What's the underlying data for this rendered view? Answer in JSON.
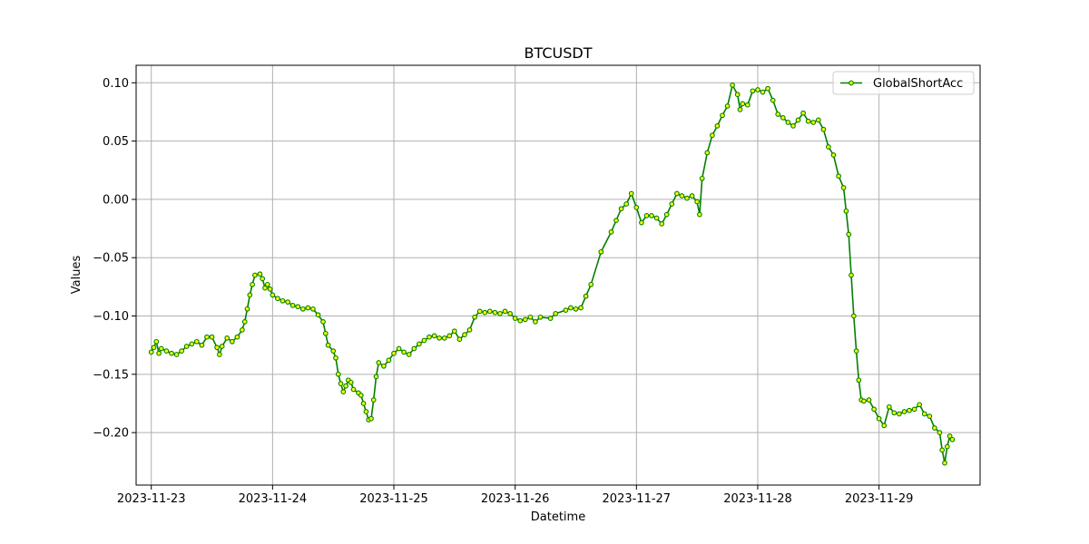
{
  "chart_data": {
    "type": "line",
    "title": "BTCUSDT",
    "xlabel": "Datetime",
    "ylabel": "Values",
    "grid": true,
    "legend_position": "top-right",
    "xlim": [
      "2023-11-22 21:00",
      "2023-11-29 20:00"
    ],
    "ylim": [
      -0.245,
      0.115
    ],
    "x_ticks": [
      "2023-11-23",
      "2023-11-24",
      "2023-11-25",
      "2023-11-26",
      "2023-11-27",
      "2023-11-28",
      "2023-11-29"
    ],
    "y_ticks": [
      -0.2,
      -0.15,
      -0.1,
      -0.05,
      0.0,
      0.05,
      0.1
    ],
    "y_tick_labels": [
      "−0.20",
      "−0.15",
      "−0.10",
      "−0.05",
      "0.00",
      "0.05",
      "0.10"
    ],
    "colors": {
      "line": "#008000",
      "marker_face": "#ffff00",
      "marker_edge": "#008000",
      "grid": "#b0b0b0"
    },
    "series": [
      {
        "name": "GlobalShortAcc",
        "marker": "circle",
        "points": [
          [
            "2023-11-23 00:00",
            -0.131
          ],
          [
            "2023-11-23 00:30",
            -0.127
          ],
          [
            "2023-11-23 01:00",
            -0.122
          ],
          [
            "2023-11-23 01:30",
            -0.132
          ],
          [
            "2023-11-23 02:00",
            -0.128
          ],
          [
            "2023-11-23 03:00",
            -0.13
          ],
          [
            "2023-11-23 04:00",
            -0.132
          ],
          [
            "2023-11-23 05:00",
            -0.133
          ],
          [
            "2023-11-23 06:00",
            -0.13
          ],
          [
            "2023-11-23 07:00",
            -0.126
          ],
          [
            "2023-11-23 08:00",
            -0.124
          ],
          [
            "2023-11-23 09:00",
            -0.122
          ],
          [
            "2023-11-23 10:00",
            -0.125
          ],
          [
            "2023-11-23 11:00",
            -0.118
          ],
          [
            "2023-11-23 12:00",
            -0.118
          ],
          [
            "2023-11-23 13:00",
            -0.127
          ],
          [
            "2023-11-23 13:30",
            -0.133
          ],
          [
            "2023-11-23 14:00",
            -0.126
          ],
          [
            "2023-11-23 15:00",
            -0.119
          ],
          [
            "2023-11-23 16:00",
            -0.122
          ],
          [
            "2023-11-23 17:00",
            -0.118
          ],
          [
            "2023-11-23 18:00",
            -0.112
          ],
          [
            "2023-11-23 18:30",
            -0.105
          ],
          [
            "2023-11-23 19:00",
            -0.094
          ],
          [
            "2023-11-23 19:30",
            -0.082
          ],
          [
            "2023-11-23 20:00",
            -0.073
          ],
          [
            "2023-11-23 20:30",
            -0.065
          ],
          [
            "2023-11-23 21:30",
            -0.064
          ],
          [
            "2023-11-23 22:00",
            -0.068
          ],
          [
            "2023-11-23 22:30",
            -0.076
          ],
          [
            "2023-11-23 23:00",
            -0.073
          ],
          [
            "2023-11-23 23:30",
            -0.077
          ],
          [
            "2023-11-24 00:00",
            -0.082
          ],
          [
            "2023-11-24 01:00",
            -0.085
          ],
          [
            "2023-11-24 02:00",
            -0.087
          ],
          [
            "2023-11-24 03:00",
            -0.088
          ],
          [
            "2023-11-24 04:00",
            -0.091
          ],
          [
            "2023-11-24 05:00",
            -0.092
          ],
          [
            "2023-11-24 06:00",
            -0.094
          ],
          [
            "2023-11-24 07:00",
            -0.093
          ],
          [
            "2023-11-24 08:00",
            -0.094
          ],
          [
            "2023-11-24 09:00",
            -0.099
          ],
          [
            "2023-11-24 10:00",
            -0.105
          ],
          [
            "2023-11-24 10:30",
            -0.115
          ],
          [
            "2023-11-24 11:00",
            -0.125
          ],
          [
            "2023-11-24 12:00",
            -0.13
          ],
          [
            "2023-11-24 12:30",
            -0.136
          ],
          [
            "2023-11-24 13:00",
            -0.15
          ],
          [
            "2023-11-24 13:30",
            -0.158
          ],
          [
            "2023-11-24 14:00",
            -0.165
          ],
          [
            "2023-11-24 14:30",
            -0.16
          ],
          [
            "2023-11-24 15:00",
            -0.155
          ],
          [
            "2023-11-24 15:30",
            -0.157
          ],
          [
            "2023-11-24 16:00",
            -0.163
          ],
          [
            "2023-11-24 17:00",
            -0.166
          ],
          [
            "2023-11-24 17:30",
            -0.168
          ],
          [
            "2023-11-24 18:00",
            -0.175
          ],
          [
            "2023-11-24 18:30",
            -0.182
          ],
          [
            "2023-11-24 19:00",
            -0.189
          ],
          [
            "2023-11-24 19:30",
            -0.188
          ],
          [
            "2023-11-24 20:00",
            -0.172
          ],
          [
            "2023-11-24 20:30",
            -0.152
          ],
          [
            "2023-11-24 21:00",
            -0.14
          ],
          [
            "2023-11-24 22:00",
            -0.143
          ],
          [
            "2023-11-24 23:00",
            -0.138
          ],
          [
            "2023-11-25 00:00",
            -0.132
          ],
          [
            "2023-11-25 01:00",
            -0.128
          ],
          [
            "2023-11-25 02:00",
            -0.131
          ],
          [
            "2023-11-25 03:00",
            -0.133
          ],
          [
            "2023-11-25 04:00",
            -0.128
          ],
          [
            "2023-11-25 05:00",
            -0.124
          ],
          [
            "2023-11-25 06:00",
            -0.121
          ],
          [
            "2023-11-25 07:00",
            -0.118
          ],
          [
            "2023-11-25 08:00",
            -0.117
          ],
          [
            "2023-11-25 09:00",
            -0.119
          ],
          [
            "2023-11-25 10:00",
            -0.119
          ],
          [
            "2023-11-25 11:00",
            -0.117
          ],
          [
            "2023-11-25 12:00",
            -0.113
          ],
          [
            "2023-11-25 13:00",
            -0.12
          ],
          [
            "2023-11-25 14:00",
            -0.116
          ],
          [
            "2023-11-25 15:00",
            -0.112
          ],
          [
            "2023-11-25 16:00",
            -0.101
          ],
          [
            "2023-11-25 17:00",
            -0.096
          ],
          [
            "2023-11-25 18:00",
            -0.097
          ],
          [
            "2023-11-25 19:00",
            -0.096
          ],
          [
            "2023-11-25 20:00",
            -0.097
          ],
          [
            "2023-11-25 21:00",
            -0.098
          ],
          [
            "2023-11-25 22:00",
            -0.096
          ],
          [
            "2023-11-25 23:00",
            -0.098
          ],
          [
            "2023-11-26 00:00",
            -0.102
          ],
          [
            "2023-11-26 01:00",
            -0.104
          ],
          [
            "2023-11-26 02:00",
            -0.103
          ],
          [
            "2023-11-26 03:00",
            -0.101
          ],
          [
            "2023-11-26 04:00",
            -0.105
          ],
          [
            "2023-11-26 05:00",
            -0.101
          ],
          [
            "2023-11-26 07:00",
            -0.102
          ],
          [
            "2023-11-26 08:00",
            -0.098
          ],
          [
            "2023-11-26 10:00",
            -0.095
          ],
          [
            "2023-11-26 11:00",
            -0.093
          ],
          [
            "2023-11-26 12:00",
            -0.094
          ],
          [
            "2023-11-26 13:00",
            -0.093
          ],
          [
            "2023-11-26 14:00",
            -0.083
          ],
          [
            "2023-11-26 15:00",
            -0.073
          ],
          [
            "2023-11-26 17:00",
            -0.045
          ],
          [
            "2023-11-26 19:00",
            -0.028
          ],
          [
            "2023-11-26 20:00",
            -0.018
          ],
          [
            "2023-11-26 21:00",
            -0.008
          ],
          [
            "2023-11-26 22:00",
            -0.004
          ],
          [
            "2023-11-26 23:00",
            0.005
          ],
          [
            "2023-11-27 00:00",
            -0.007
          ],
          [
            "2023-11-27 01:00",
            -0.02
          ],
          [
            "2023-11-27 02:00",
            -0.014
          ],
          [
            "2023-11-27 03:00",
            -0.014
          ],
          [
            "2023-11-27 04:00",
            -0.016
          ],
          [
            "2023-11-27 05:00",
            -0.021
          ],
          [
            "2023-11-27 06:00",
            -0.013
          ],
          [
            "2023-11-27 07:00",
            -0.004
          ],
          [
            "2023-11-27 08:00",
            0.005
          ],
          [
            "2023-11-27 09:00",
            0.003
          ],
          [
            "2023-11-27 10:00",
            0.001
          ],
          [
            "2023-11-27 11:00",
            0.003
          ],
          [
            "2023-11-27 12:00",
            -0.002
          ],
          [
            "2023-11-27 12:30",
            -0.013
          ],
          [
            "2023-11-27 13:00",
            0.018
          ],
          [
            "2023-11-27 14:00",
            0.04
          ],
          [
            "2023-11-27 15:00",
            0.055
          ],
          [
            "2023-11-27 16:00",
            0.063
          ],
          [
            "2023-11-27 17:00",
            0.072
          ],
          [
            "2023-11-27 18:00",
            0.08
          ],
          [
            "2023-11-27 19:00",
            0.098
          ],
          [
            "2023-11-27 20:00",
            0.09
          ],
          [
            "2023-11-27 20:30",
            0.077
          ],
          [
            "2023-11-27 21:00",
            0.082
          ],
          [
            "2023-11-27 22:00",
            0.081
          ],
          [
            "2023-11-27 23:00",
            0.093
          ],
          [
            "2023-11-28 00:00",
            0.094
          ],
          [
            "2023-11-28 01:00",
            0.092
          ],
          [
            "2023-11-28 02:00",
            0.095
          ],
          [
            "2023-11-28 03:00",
            0.085
          ],
          [
            "2023-11-28 04:00",
            0.073
          ],
          [
            "2023-11-28 05:00",
            0.07
          ],
          [
            "2023-11-28 06:00",
            0.066
          ],
          [
            "2023-11-28 07:00",
            0.063
          ],
          [
            "2023-11-28 08:00",
            0.068
          ],
          [
            "2023-11-28 09:00",
            0.074
          ],
          [
            "2023-11-28 10:00",
            0.067
          ],
          [
            "2023-11-28 11:00",
            0.066
          ],
          [
            "2023-11-28 12:00",
            0.068
          ],
          [
            "2023-11-28 13:00",
            0.06
          ],
          [
            "2023-11-28 14:00",
            0.045
          ],
          [
            "2023-11-28 15:00",
            0.038
          ],
          [
            "2023-11-28 16:00",
            0.02
          ],
          [
            "2023-11-28 17:00",
            0.01
          ],
          [
            "2023-11-28 17:30",
            -0.01
          ],
          [
            "2023-11-28 18:00",
            -0.03
          ],
          [
            "2023-11-28 18:30",
            -0.065
          ],
          [
            "2023-11-28 19:00",
            -0.1
          ],
          [
            "2023-11-28 19:30",
            -0.13
          ],
          [
            "2023-11-28 20:00",
            -0.155
          ],
          [
            "2023-11-28 20:30",
            -0.172
          ],
          [
            "2023-11-28 21:00",
            -0.173
          ],
          [
            "2023-11-28 22:00",
            -0.172
          ],
          [
            "2023-11-28 23:00",
            -0.18
          ],
          [
            "2023-11-29 00:00",
            -0.188
          ],
          [
            "2023-11-29 01:00",
            -0.194
          ],
          [
            "2023-11-29 02:00",
            -0.178
          ],
          [
            "2023-11-29 03:00",
            -0.183
          ],
          [
            "2023-11-29 04:00",
            -0.184
          ],
          [
            "2023-11-29 05:00",
            -0.182
          ],
          [
            "2023-11-29 06:00",
            -0.181
          ],
          [
            "2023-11-29 07:00",
            -0.18
          ],
          [
            "2023-11-29 08:00",
            -0.176
          ],
          [
            "2023-11-29 09:00",
            -0.184
          ],
          [
            "2023-11-29 10:00",
            -0.186
          ],
          [
            "2023-11-29 11:00",
            -0.196
          ],
          [
            "2023-11-29 12:00",
            -0.2
          ],
          [
            "2023-11-29 12:30",
            -0.215
          ],
          [
            "2023-11-29 13:00",
            -0.226
          ],
          [
            "2023-11-29 13:30",
            -0.212
          ],
          [
            "2023-11-29 14:00",
            -0.203
          ],
          [
            "2023-11-29 14:30",
            -0.206
          ]
        ]
      }
    ]
  }
}
